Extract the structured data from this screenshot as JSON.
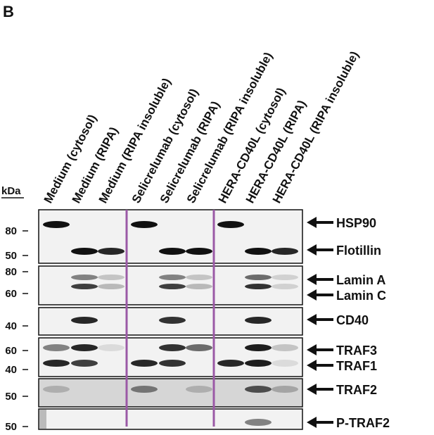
{
  "panel_label": "B",
  "kda_label": "kDa",
  "lanes": [
    "Medium (cytosol)",
    "Medium (RIPA)",
    "Medium (RIPA insoluble)",
    "Selicrelumab (cytosol)",
    "Selicrelumab (RIPA)",
    "Selicrelumab (RIPA insoluble)",
    "HERA-CD40L (cytosol)",
    "HERA-CD40L (RIPA)",
    "HERA-CD40L (RIPA insoluble)"
  ],
  "blots": [
    {
      "markers": [
        80,
        50
      ],
      "proteins": [
        "HSP90",
        "Flotillin"
      ]
    },
    {
      "markers": [
        80,
        60
      ],
      "proteins": [
        "Lamin A",
        "Lamin C"
      ]
    },
    {
      "markers": [
        40
      ],
      "proteins": [
        "CD40"
      ]
    },
    {
      "markers": [
        60,
        40
      ],
      "proteins": [
        "TRAF3",
        "TRAF1"
      ]
    },
    {
      "markers": [
        50
      ],
      "proteins": [
        "TRAF2"
      ]
    },
    {
      "markers": [
        50
      ],
      "proteins": [
        "P-TRAF2"
      ]
    }
  ]
}
